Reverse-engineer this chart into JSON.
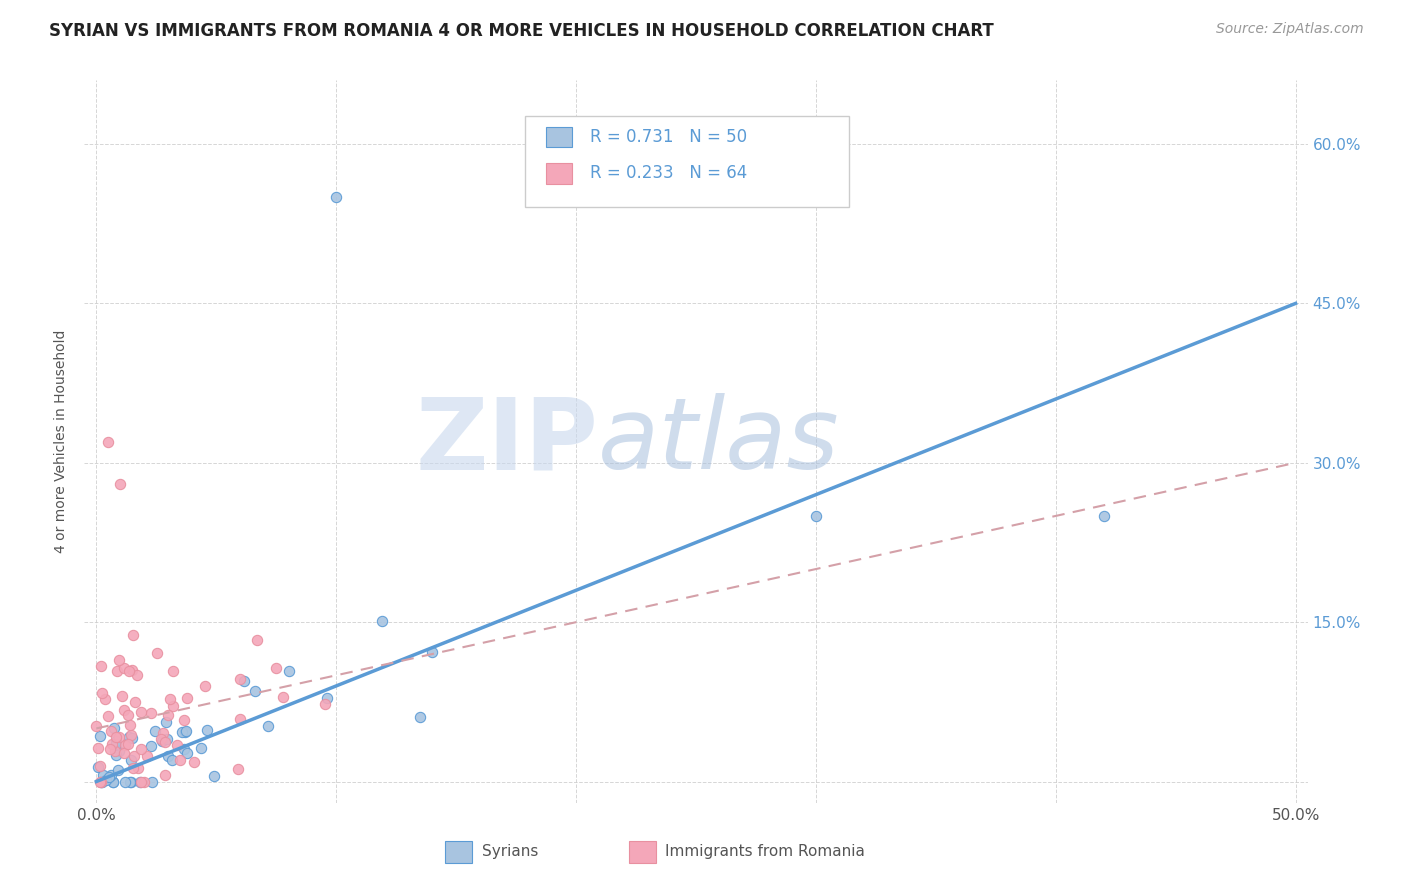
{
  "title": "SYRIAN VS IMMIGRANTS FROM ROMANIA 4 OR MORE VEHICLES IN HOUSEHOLD CORRELATION CHART",
  "source": "Source: ZipAtlas.com",
  "ylabel": "4 or more Vehicles in Household",
  "xlim": [
    -0.005,
    0.505
  ],
  "ylim": [
    -0.02,
    0.66
  ],
  "xticks": [
    0.0,
    0.1,
    0.2,
    0.3,
    0.4,
    0.5
  ],
  "xticklabels": [
    "0.0%",
    "",
    "",
    "",
    "",
    "50.0%"
  ],
  "yticks": [
    0.0,
    0.15,
    0.3,
    0.45,
    0.6
  ],
  "yticklabels_right": [
    "",
    "15.0%",
    "30.0%",
    "45.0%",
    "60.0%"
  ],
  "color_syrian": "#a8c4e0",
  "color_romania": "#f4a7b9",
  "line_color_syrian": "#5b9bd5",
  "line_color_romania": "#d4a0a8",
  "background_color": "#ffffff",
  "grid_color": "#cccccc",
  "title_fontsize": 12,
  "axis_fontsize": 10,
  "tick_fontsize": 11,
  "watermark_zip_color": "#c8d8ee",
  "watermark_atlas_color": "#a8c0de"
}
